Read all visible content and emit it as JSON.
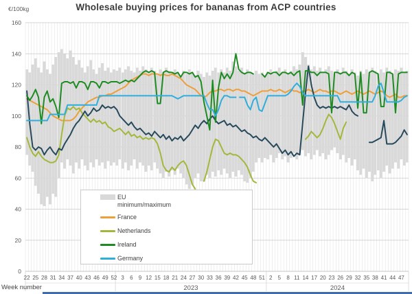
{
  "title": "Wholesale buying prices for bananas from ACP countries",
  "y_unit_label": "€/100kg",
  "x_axis_title": "Week number",
  "window": {
    "bottom_edge_color": "#3E6CB0"
  },
  "colors": {
    "band": "#D9D9D9",
    "france": "#ED9F3C",
    "netherlands": "#A2B83C",
    "ireland": "#1E8B22",
    "germany": "#2FAEDC",
    "unlabeled_dark_blue": "#27495C",
    "grid_vertical": "#E4E4E4",
    "grid_horizontal": "#C9C9C9",
    "axis_text": "#595959"
  },
  "legend": {
    "items": [
      {
        "line1": "EU",
        "line2": "minimum/maximum",
        "kind": "band",
        "color": "#D9D9D9"
      },
      {
        "line1": "France",
        "line2": "",
        "kind": "line",
        "color": "#ED9F3C"
      },
      {
        "line1": "Netherlands",
        "line2": "",
        "kind": "line",
        "color": "#A2B83C"
      },
      {
        "line1": "Ireland",
        "line2": "",
        "kind": "line",
        "color": "#1E8B22"
      },
      {
        "line1": "Germany",
        "line2": "",
        "kind": "line",
        "color": "#2FAEDC"
      }
    ]
  },
  "chart_data": {
    "type": "line",
    "title": "Wholesale buying prices for bananas from ACP countries",
    "ylabel": "€/100kg",
    "xlabel": "Week number",
    "ylim": [
      0,
      160
    ],
    "y_ticks": [
      0,
      20,
      40,
      60,
      80,
      100,
      120,
      140,
      160
    ],
    "grid": true,
    "x_start": "2022-W22",
    "n_points": 132,
    "x_tick_every": 3,
    "x_tick_labels": [
      "22",
      "25",
      "28",
      "31",
      "34",
      "37",
      "40",
      "43",
      "46",
      "49",
      "52",
      "3",
      "6",
      "9",
      "12",
      "15",
      "18",
      "21",
      "24",
      "27",
      "30",
      "33",
      "36",
      "39",
      "42",
      "45",
      "48",
      "51",
      "2",
      "5",
      "8",
      "11",
      "14",
      "17",
      "20",
      "23",
      "26",
      "29",
      "32",
      "35",
      "38",
      "41",
      "44",
      "47"
    ],
    "year_groups": [
      {
        "year_label": "",
        "start_index": 0,
        "end_index": 30
      },
      {
        "year_label": "2023",
        "start_index": 31,
        "end_index": 82
      },
      {
        "year_label": "2024",
        "start_index": 83,
        "end_index": 131
      }
    ],
    "band": {
      "name": "EU minimum/maximum",
      "color": "#D9D9D9",
      "min": [
        75,
        68,
        64,
        55,
        50,
        43,
        42,
        48,
        43,
        50,
        48,
        60,
        70,
        66,
        72,
        68,
        63,
        70,
        66,
        72,
        68,
        65,
        70,
        67,
        72,
        68,
        70,
        66,
        71,
        68,
        70,
        68,
        72,
        66,
        70,
        65,
        68,
        72,
        66,
        70,
        68,
        64,
        68,
        65,
        70,
        66,
        63,
        60,
        64,
        61,
        65,
        62,
        66,
        63,
        60,
        56,
        53,
        56,
        60,
        63,
        58,
        58,
        62,
        60,
        64,
        61,
        65,
        62,
        66,
        63,
        60,
        64,
        61,
        65,
        62,
        58,
        57,
        60,
        64,
        70,
        73,
        70,
        73,
        72,
        75,
        70,
        73,
        76,
        72,
        74,
        70,
        73,
        76,
        72,
        75,
        78,
        74,
        76,
        72,
        75,
        78,
        74,
        76,
        72,
        75,
        78,
        80,
        76,
        72,
        75,
        70,
        73,
        68,
        72,
        65,
        62,
        66,
        60,
        64,
        58,
        62,
        65,
        60,
        64,
        68,
        63,
        66,
        70,
        66,
        72,
        68,
        70
      ],
      "max": [
        130,
        128,
        133,
        137,
        131,
        128,
        135,
        130,
        127,
        133,
        138,
        141,
        143,
        140,
        137,
        142,
        138,
        133,
        136,
        131,
        128,
        132,
        136,
        130,
        127,
        131,
        134,
        129,
        131,
        128,
        130,
        129,
        131,
        128,
        130,
        132,
        129,
        128,
        131,
        129,
        132,
        130,
        128,
        131,
        129,
        127,
        130,
        128,
        131,
        129,
        127,
        130,
        128,
        126,
        129,
        127,
        130,
        128,
        126,
        129,
        127,
        125,
        128,
        126,
        129,
        131,
        128,
        130,
        128,
        131,
        129,
        135,
        132,
        129,
        131,
        128,
        130,
        128,
        127,
        129,
        127,
        128,
        126,
        128,
        130,
        127,
        129,
        131,
        128,
        130,
        127,
        129,
        132,
        130,
        133,
        141,
        138,
        133,
        130,
        132,
        129,
        131,
        128,
        130,
        132,
        129,
        127,
        130,
        128,
        131,
        129,
        127,
        130,
        128,
        126,
        129,
        127,
        130,
        128,
        131,
        129,
        127,
        130,
        128,
        131,
        129,
        127,
        130,
        129,
        131,
        128,
        129
      ]
    },
    "series": [
      {
        "name": "France",
        "color": "#ED9F3C",
        "values": [
          111,
          110,
          109,
          108,
          107,
          106,
          105,
          104,
          102,
          100,
          99,
          98,
          97,
          97,
          97,
          97,
          98,
          100,
          103,
          105,
          107,
          109,
          110,
          111,
          112,
          112,
          113,
          113,
          114,
          114,
          115,
          116,
          117,
          118,
          119,
          121,
          123,
          124,
          125,
          126,
          127,
          127,
          126,
          127,
          127,
          127,
          126,
          127,
          126,
          126,
          127,
          126,
          125,
          124,
          122,
          120,
          119,
          118,
          117,
          115,
          113,
          112,
          113,
          115,
          116,
          116,
          117,
          117,
          116,
          117,
          117,
          116,
          117,
          117,
          116,
          116,
          115,
          114,
          113,
          114,
          115,
          116,
          116,
          116,
          117,
          116,
          116,
          117,
          116,
          115,
          116,
          117,
          116,
          116,
          115,
          116,
          116,
          117,
          116,
          115,
          116,
          117,
          116,
          116,
          115,
          116,
          116,
          115,
          114,
          115,
          116,
          115,
          114,
          115,
          116,
          115,
          114,
          115,
          116,
          115,
          114,
          115,
          116,
          115,
          113,
          112,
          113,
          114,
          112,
          112,
          113,
          113
        ]
      },
      {
        "name": "Netherlands",
        "color": "#A2B83C",
        "values": [
          86,
          80,
          76,
          74,
          77,
          74,
          72,
          71,
          70,
          70,
          71,
          75,
          88,
          100,
          105,
          104,
          106,
          104,
          105,
          102,
          100,
          98,
          96,
          98,
          96,
          97,
          95,
          96,
          93,
          92,
          90,
          91,
          92,
          90,
          88,
          90,
          87,
          88,
          86,
          87,
          85,
          86,
          85,
          86,
          85,
          82,
          76,
          68,
          65,
          64,
          67,
          65,
          68,
          70,
          71,
          68,
          62,
          56,
          53,
          null,
          null,
          58,
          64,
          72,
          80,
          85,
          84,
          80,
          76,
          75,
          76,
          75,
          75,
          74,
          72,
          70,
          67,
          62,
          58,
          57,
          null,
          null,
          null,
          null,
          null,
          null,
          null,
          null,
          null,
          null,
          null,
          null,
          null,
          null,
          null,
          null,
          85,
          87,
          90,
          88,
          86,
          88,
          92,
          97,
          101,
          99,
          95,
          90,
          85,
          92,
          96,
          null,
          null,
          null,
          null,
          null,
          null,
          null,
          null,
          null,
          null,
          null,
          null,
          null,
          null,
          null,
          null,
          null,
          null,
          null,
          null,
          null
        ]
      },
      {
        "name": "",
        "color": "#27495C",
        "values": [
          116,
          95,
          80,
          78,
          80,
          79,
          75,
          78,
          80,
          77,
          75,
          79,
          78,
          82,
          85,
          88,
          92,
          95,
          97,
          100,
          103,
          100,
          102,
          105,
          103,
          104,
          107,
          105,
          106,
          105,
          106,
          104,
          100,
          98,
          96,
          94,
          96,
          93,
          91,
          92,
          90,
          88,
          89,
          87,
          90,
          88,
          86,
          88,
          85,
          87,
          84,
          86,
          85,
          87,
          84,
          86,
          88,
          91,
          94,
          92,
          95,
          97,
          95,
          98,
          100,
          97,
          95,
          96,
          97,
          94,
          95,
          93,
          94,
          92,
          90,
          91,
          89,
          88,
          86,
          87,
          85,
          84,
          86,
          84,
          82,
          80,
          82,
          79,
          76,
          78,
          75,
          77,
          74,
          76,
          75,
          95,
          115,
          132,
          120,
          112,
          107,
          105,
          106,
          105,
          106,
          105,
          106,
          105,
          106,
          105,
          104,
          107,
          103,
          101,
          100,
          null,
          null,
          null,
          83,
          83,
          84,
          85,
          86,
          97,
          82,
          82,
          82,
          83,
          85,
          87,
          91,
          88
        ]
      },
      {
        "name": "Ireland",
        "color": "#1E8B22",
        "values": [
          113,
          110,
          113,
          117,
          112,
          95,
          112,
          116,
          109,
          111,
          106,
          99,
          121,
          122,
          122,
          121,
          122,
          118,
          122,
          122,
          121,
          117,
          122,
          122,
          121,
          118,
          122,
          122,
          121,
          122,
          122,
          122,
          121,
          122,
          123,
          122,
          123,
          122,
          124,
          126,
          128,
          129,
          128,
          129,
          128,
          108,
          108,
          128,
          129,
          128,
          128,
          127,
          128,
          125,
          128,
          128,
          127,
          128,
          125,
          126,
          122,
          109,
          100,
          91,
          123,
          96,
          118,
          128,
          124,
          127,
          124,
          128,
          140,
          130,
          128,
          127,
          128,
          128,
          127,
          null,
          null,
          127,
          125,
          128,
          127,
          128,
          128,
          126,
          128,
          128,
          127,
          128,
          126,
          128,
          129,
          107,
          129,
          129,
          128,
          128,
          126,
          128,
          128,
          128,
          127,
          102,
          128,
          128,
          127,
          128,
          128,
          126,
          128,
          127,
          105,
          128,
          102,
          102,
          128,
          129,
          128,
          127,
          106,
          106,
          128,
          128,
          127,
          102,
          127,
          128,
          128,
          128
        ]
      },
      {
        "name": "Germany",
        "color": "#2FAEDC",
        "dashed_segment": [
          71,
          74
        ],
        "values": [
          97,
          97,
          97,
          97,
          97,
          97,
          97,
          97,
          101,
          101,
          101,
          101,
          101,
          101,
          107,
          107,
          107,
          107,
          107,
          107,
          107,
          107,
          107,
          107,
          107,
          113,
          113,
          113,
          113,
          113,
          113,
          113,
          113,
          113,
          113,
          113,
          113,
          113,
          113,
          113,
          113,
          113,
          113,
          113,
          113,
          113,
          113,
          113,
          113,
          113,
          113,
          112,
          111,
          112,
          113,
          113,
          113,
          113,
          113,
          113,
          113,
          113,
          108,
          104,
          104,
          100,
          104,
          110,
          113,
          113,
          112,
          112,
          112,
          112,
          112,
          112,
          107,
          104,
          110,
          112,
          104,
          103,
          108,
          113,
          113,
          113,
          113,
          113,
          113,
          113,
          114,
          116,
          119,
          121,
          119,
          115,
          113,
          113,
          113,
          113,
          113,
          113,
          113,
          113,
          113,
          113,
          113,
          113,
          109,
          109,
          109,
          109,
          109,
          109,
          109,
          109,
          109,
          109,
          109,
          109,
          113,
          119,
          121,
          115,
          109,
          109,
          109,
          109,
          109,
          110,
          112,
          113
        ]
      }
    ]
  }
}
